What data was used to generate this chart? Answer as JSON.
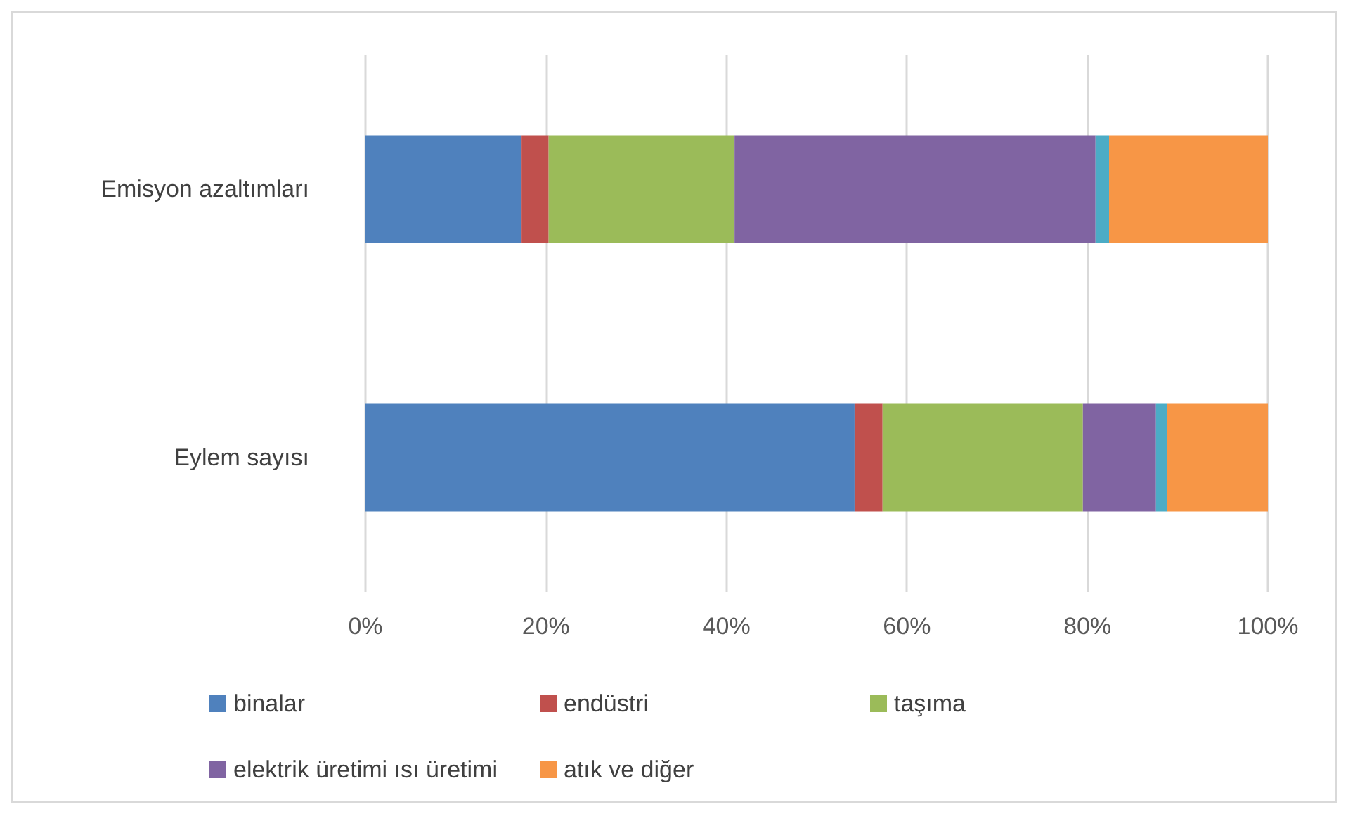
{
  "chart_data": {
    "type": "bar",
    "orientation": "horizontal",
    "stacked": true,
    "categories": [
      "Emisyon azaltımları",
      "Eylem sayısı"
    ],
    "series": [
      {
        "name": "binalar",
        "color": "#4f81bd",
        "values": [
          17.3,
          54.2
        ]
      },
      {
        "name": "endüstri",
        "color": "#c0504d",
        "values": [
          3.0,
          3.1
        ]
      },
      {
        "name": "taşıma",
        "color": "#9bbb59",
        "values": [
          20.6,
          22.2
        ]
      },
      {
        "name": "elektrik üretimi ısı üretimi",
        "color": "#8064a2",
        "values": [
          40.0,
          8.1
        ]
      },
      {
        "color": "#4bacc6",
        "values": [
          1.5,
          1.2
        ]
      },
      {
        "name": "atık ve diğer",
        "color": "#f79646",
        "values": [
          17.6,
          11.2
        ]
      }
    ],
    "xlim": [
      0,
      100
    ],
    "xticks": [
      {
        "value": 0,
        "label": "0%"
      },
      {
        "value": 20,
        "label": "20%"
      },
      {
        "value": 40,
        "label": "40%"
      },
      {
        "value": 60,
        "label": "60%"
      },
      {
        "value": 80,
        "label": "80%"
      },
      {
        "value": 100,
        "label": "100%"
      }
    ],
    "grid": "x",
    "legend": "bottom"
  }
}
